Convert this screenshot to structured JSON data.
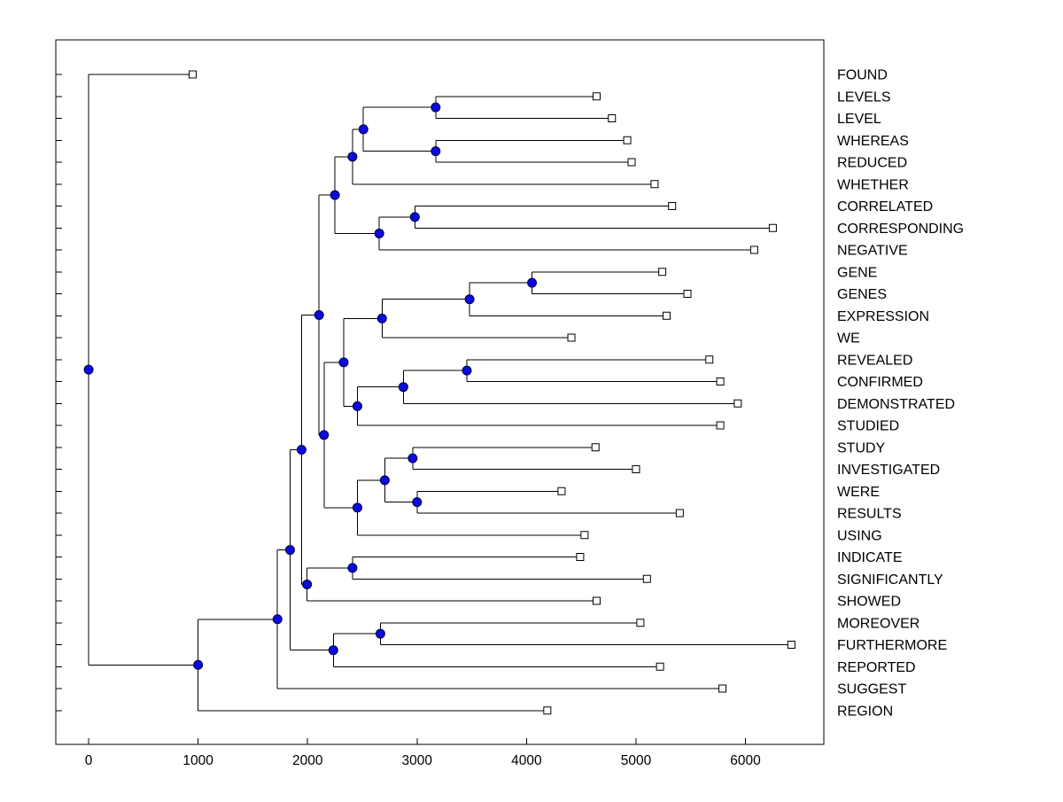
{
  "chart_data": {
    "type": "dendrogram",
    "orientation": "left-to-right",
    "title": "",
    "xlabel": "",
    "ylabel": "",
    "grid": false,
    "legend": "none",
    "x_ticks": [
      0,
      1000,
      2000,
      3000,
      4000,
      5000,
      6000
    ],
    "x_range": [
      -300,
      6716
    ],
    "leaf_order": [
      "FOUND",
      "LEVELS",
      "LEVEL",
      "WHEREAS",
      "REDUCED",
      "WHETHER",
      "CORRELATED",
      "CORRESPONDING",
      "NEGATIVE",
      "GENE",
      "GENES",
      "EXPRESSION",
      "WE",
      "REVEALED",
      "CONFIRMED",
      "DEMONSTRATED",
      "STUDIED",
      "STUDY",
      "INVESTIGATED",
      "WERE",
      "RESULTS",
      "USING",
      "INDICATE",
      "SIGNIFICANTLY",
      "SHOWED",
      "MOREOVER",
      "FURTHERMORE",
      "REPORTED",
      "SUGGEST",
      "REGION"
    ],
    "markers": {
      "internal": "filled-circle",
      "leaf": "open-square"
    },
    "colors": {
      "edge": "#000000",
      "axes": "#000000",
      "text": "#000000",
      "background": "#ffffff",
      "internal_node_fill": "#0a0ae0",
      "internal_node_stroke": "#000046",
      "leaf_marker_fill": "#ffffff",
      "leaf_marker_stroke": "#000000"
    },
    "tree": {
      "d": 0,
      "c": [
        {
          "label": "FOUND",
          "d": 950
        },
        {
          "d": 1000,
          "c": [
            {
              "d": 1725,
              "c": [
                {
                  "d": 1840,
                  "c": [
                    {
                      "d": 1945,
                      "c": [
                        {
                          "d": 2105,
                          "c": [
                            {
                              "d": 2250,
                              "c": [
                                {
                                  "d": 2410,
                                  "c": [
                                    {
                                      "d": 2510,
                                      "c": [
                                        {
                                          "d": 3170,
                                          "c": [
                                            {
                                              "label": "LEVELS",
                                              "d": 4640
                                            },
                                            {
                                              "label": "LEVEL",
                                              "d": 4780
                                            }
                                          ]
                                        },
                                        {
                                          "d": 3170,
                                          "c": [
                                            {
                                              "label": "WHEREAS",
                                              "d": 4920
                                            },
                                            {
                                              "label": "REDUCED",
                                              "d": 4960
                                            }
                                          ]
                                        }
                                      ]
                                    },
                                    {
                                      "label": "WHETHER",
                                      "d": 5170
                                    }
                                  ]
                                },
                                {
                                  "d": 2655,
                                  "c": [
                                    {
                                      "d": 2980,
                                      "c": [
                                        {
                                          "label": "CORRELATED",
                                          "d": 5330
                                        },
                                        {
                                          "label": "CORRESPONDING",
                                          "d": 6250
                                        }
                                      ]
                                    },
                                    {
                                      "label": "NEGATIVE",
                                      "d": 6080
                                    }
                                  ]
                                }
                              ]
                            },
                            {
                              "d": 2150,
                              "c": [
                                {
                                  "d": 2330,
                                  "c": [
                                    {
                                      "d": 2680,
                                      "c": [
                                        {
                                          "d": 3480,
                                          "c": [
                                            {
                                              "d": 4050,
                                              "c": [
                                                {
                                                  "label": "GENE",
                                                  "d": 5240
                                                },
                                                {
                                                  "label": "GENES",
                                                  "d": 5470
                                                }
                                              ]
                                            },
                                            {
                                              "label": "EXPRESSION",
                                              "d": 5280
                                            }
                                          ]
                                        },
                                        {
                                          "label": "WE",
                                          "d": 4410
                                        }
                                      ]
                                    },
                                    {
                                      "d": 2455,
                                      "c": [
                                        {
                                          "d": 2875,
                                          "c": [
                                            {
                                              "d": 3455,
                                              "c": [
                                                {
                                                  "label": "REVEALED",
                                                  "d": 5670
                                                },
                                                {
                                                  "label": "CONFIRMED",
                                                  "d": 5770
                                                }
                                              ]
                                            },
                                            {
                                              "label": "DEMONSTRATED",
                                              "d": 5930
                                            }
                                          ]
                                        },
                                        {
                                          "label": "STUDIED",
                                          "d": 5770
                                        }
                                      ]
                                    }
                                  ]
                                },
                                {
                                  "d": 2455,
                                  "c": [
                                    {
                                      "d": 2705,
                                      "c": [
                                        {
                                          "d": 2960,
                                          "c": [
                                            {
                                              "label": "STUDY",
                                              "d": 4630
                                            },
                                            {
                                              "label": "INVESTIGATED",
                                              "d": 5000
                                            }
                                          ]
                                        },
                                        {
                                          "d": 3000,
                                          "c": [
                                            {
                                              "label": "WERE",
                                              "d": 4320
                                            },
                                            {
                                              "label": "RESULTS",
                                              "d": 5400
                                            }
                                          ]
                                        }
                                      ]
                                    },
                                    {
                                      "label": "USING",
                                      "d": 4530
                                    }
                                  ]
                                }
                              ]
                            }
                          ]
                        },
                        {
                          "d": 1995,
                          "c": [
                            {
                              "d": 2410,
                              "c": [
                                {
                                  "label": "INDICATE",
                                  "d": 4490
                                },
                                {
                                  "label": "SIGNIFICANTLY",
                                  "d": 5100
                                }
                              ]
                            },
                            {
                              "label": "SHOWED",
                              "d": 4640
                            }
                          ]
                        }
                      ]
                    },
                    {
                      "d": 2235,
                      "c": [
                        {
                          "d": 2665,
                          "c": [
                            {
                              "label": "MOREOVER",
                              "d": 5040
                            },
                            {
                              "label": "FURTHERMORE",
                              "d": 6420
                            }
                          ]
                        },
                        {
                          "label": "REPORTED",
                          "d": 5220
                        }
                      ]
                    }
                  ]
                },
                {
                  "label": "SUGGEST",
                  "d": 5790
                }
              ]
            },
            {
              "label": "REGION",
              "d": 4190
            }
          ]
        }
      ]
    }
  }
}
